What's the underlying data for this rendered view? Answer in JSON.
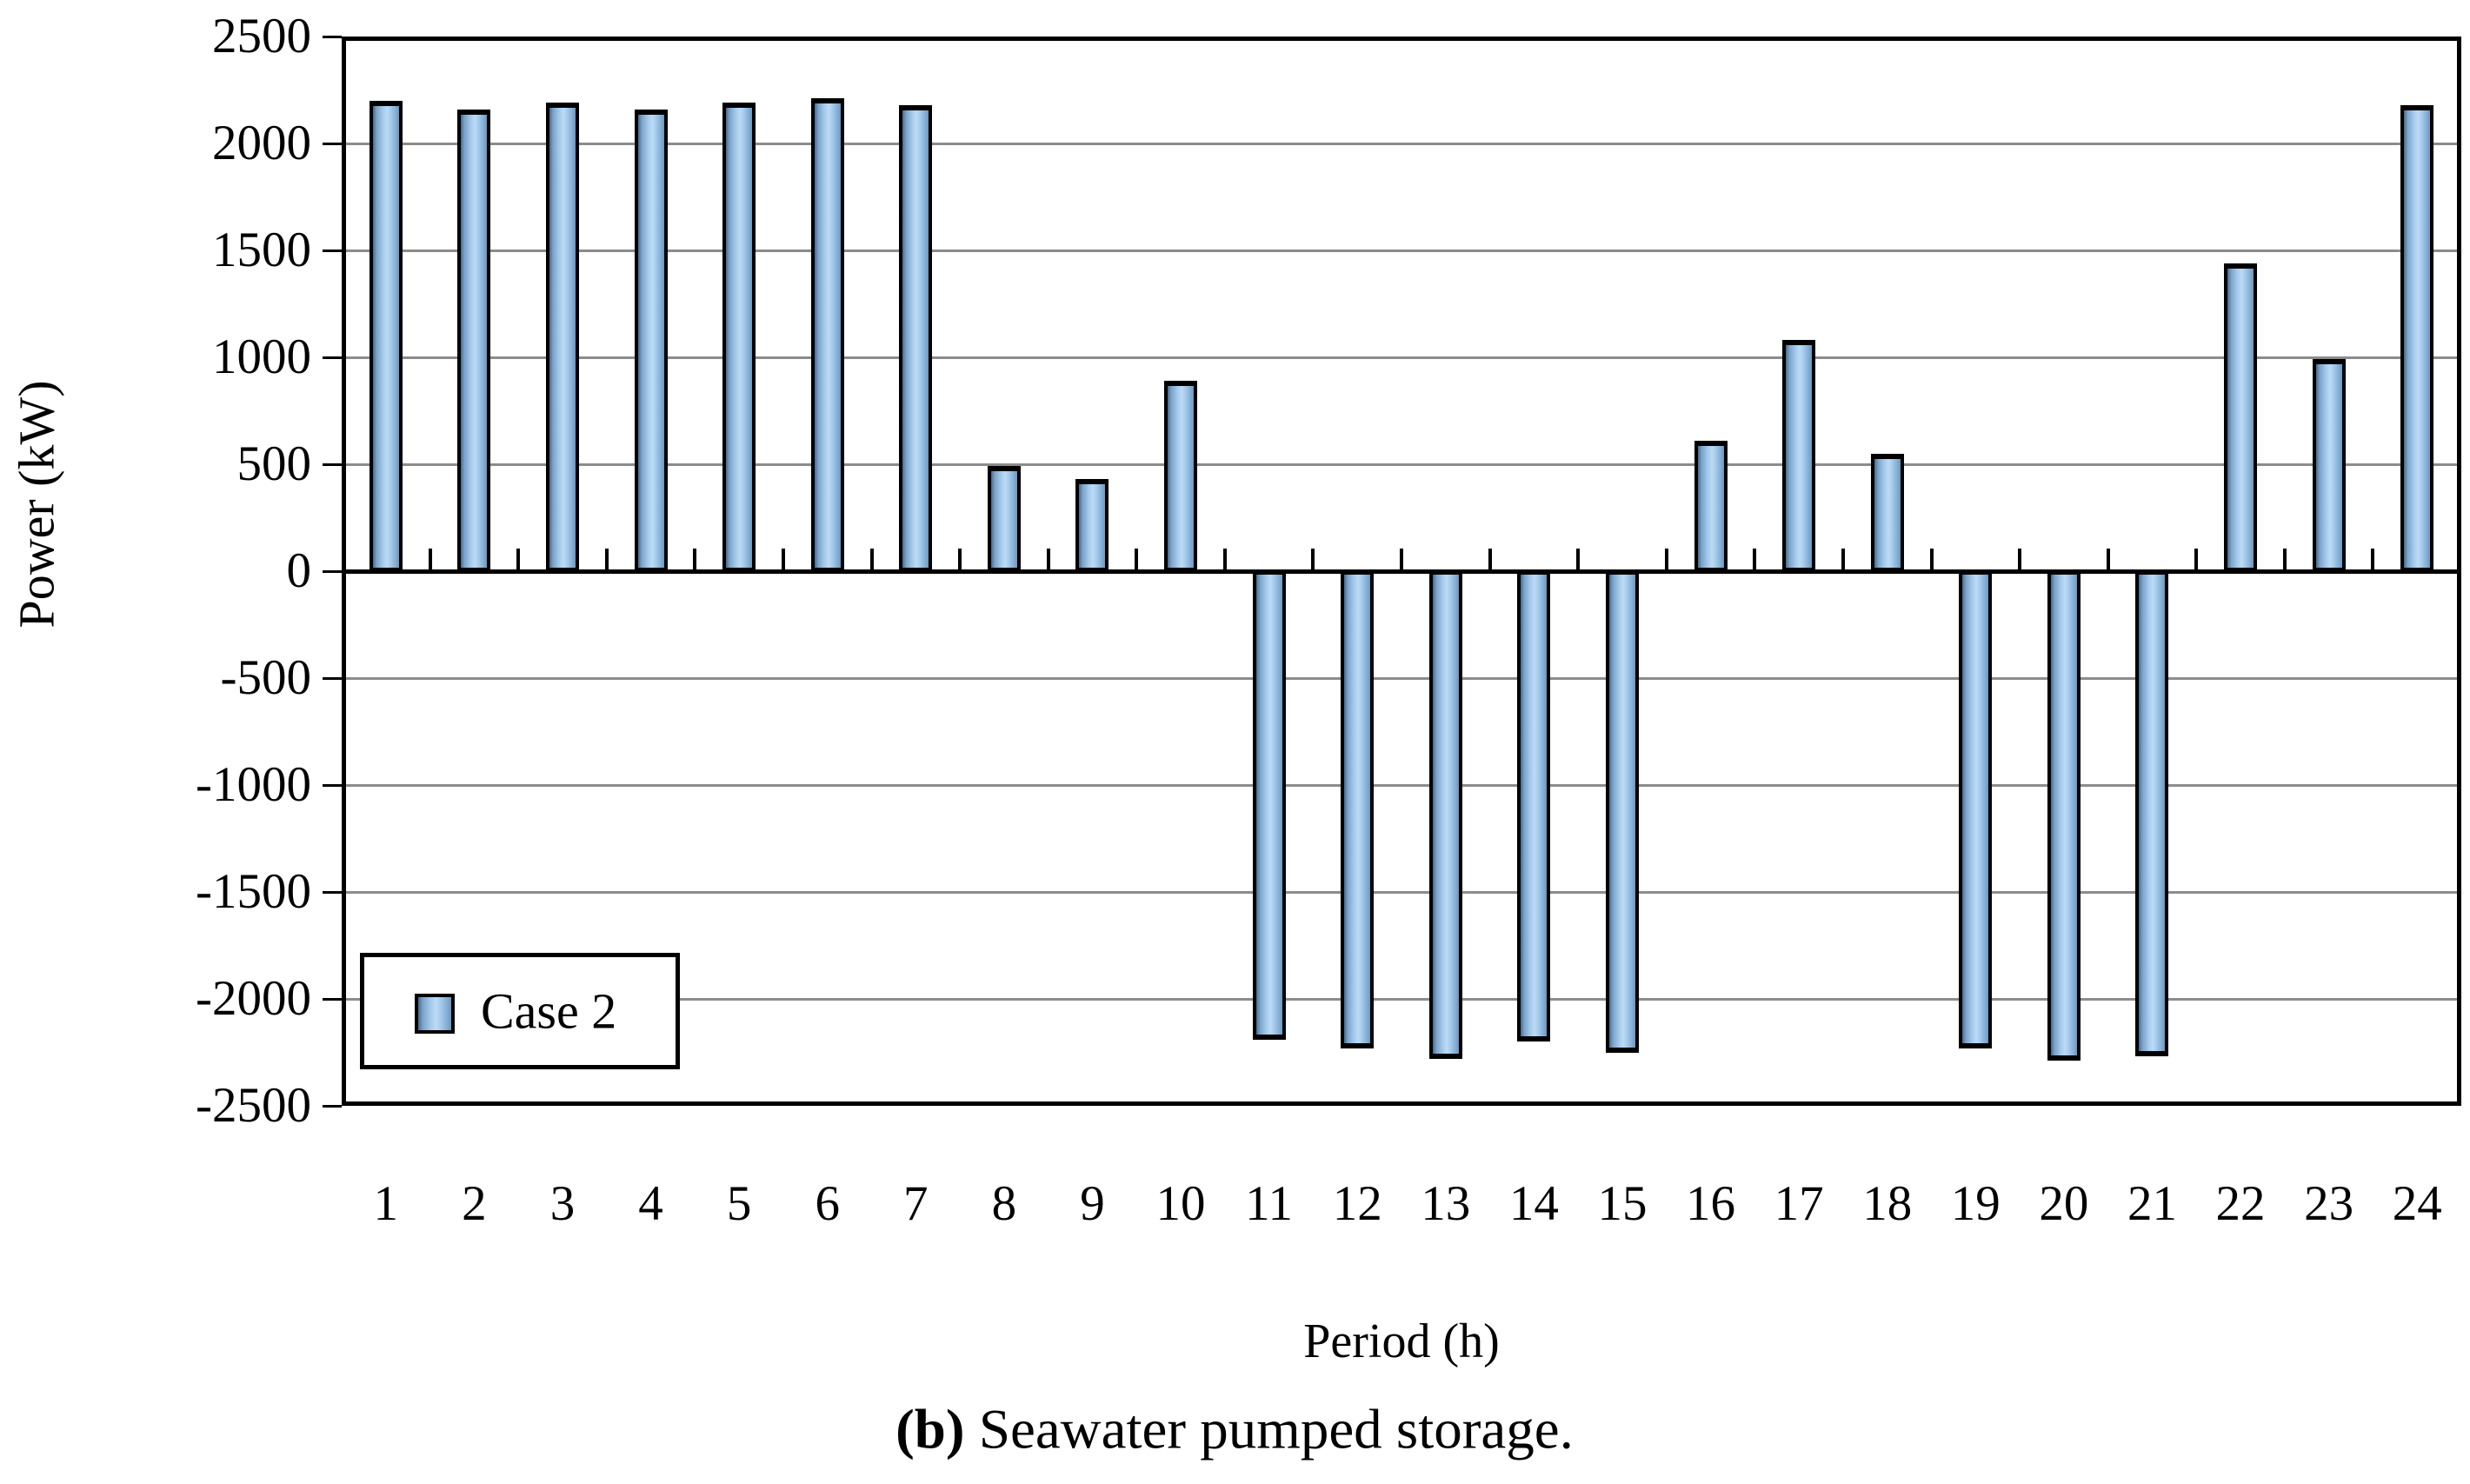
{
  "figure": {
    "y_axis_title": "Power (kW)",
    "x_axis_title": "Period (h)",
    "legend_label": "Case 2",
    "caption_bold": "(b)",
    "caption_text": " Seawater pumped storage."
  },
  "chart_data": {
    "type": "bar",
    "title": "",
    "xlabel": "Period (h)",
    "ylabel": "Power (kW)",
    "categories": [
      "1",
      "2",
      "3",
      "4",
      "5",
      "6",
      "7",
      "8",
      "9",
      "10",
      "11",
      "12",
      "13",
      "14",
      "15",
      "16",
      "17",
      "18",
      "19",
      "20",
      "21",
      "22",
      "23",
      "24"
    ],
    "series": [
      {
        "name": "Case 2",
        "values": [
          2200,
          2160,
          2190,
          2160,
          2190,
          2210,
          2180,
          490,
          430,
          890,
          -2190,
          -2230,
          -2280,
          -2200,
          -2250,
          610,
          1080,
          550,
          -2230,
          -2290,
          -2270,
          1440,
          990,
          2180
        ]
      }
    ],
    "ylim": [
      -2500,
      2500
    ],
    "ytick_interval": 500,
    "grid": true,
    "legend_position": "inside-bottom-left",
    "colors": {
      "bar_edge_dark": "#47698c",
      "bar_body_light": "#a9cdee",
      "bar_highlight": "#bcdaf4",
      "bar_right_shade": "#6f97bd",
      "bar_border": "#000000",
      "gridline": "#8c8c8c",
      "axis_line": "#000000",
      "background": "#ffffff"
    }
  }
}
